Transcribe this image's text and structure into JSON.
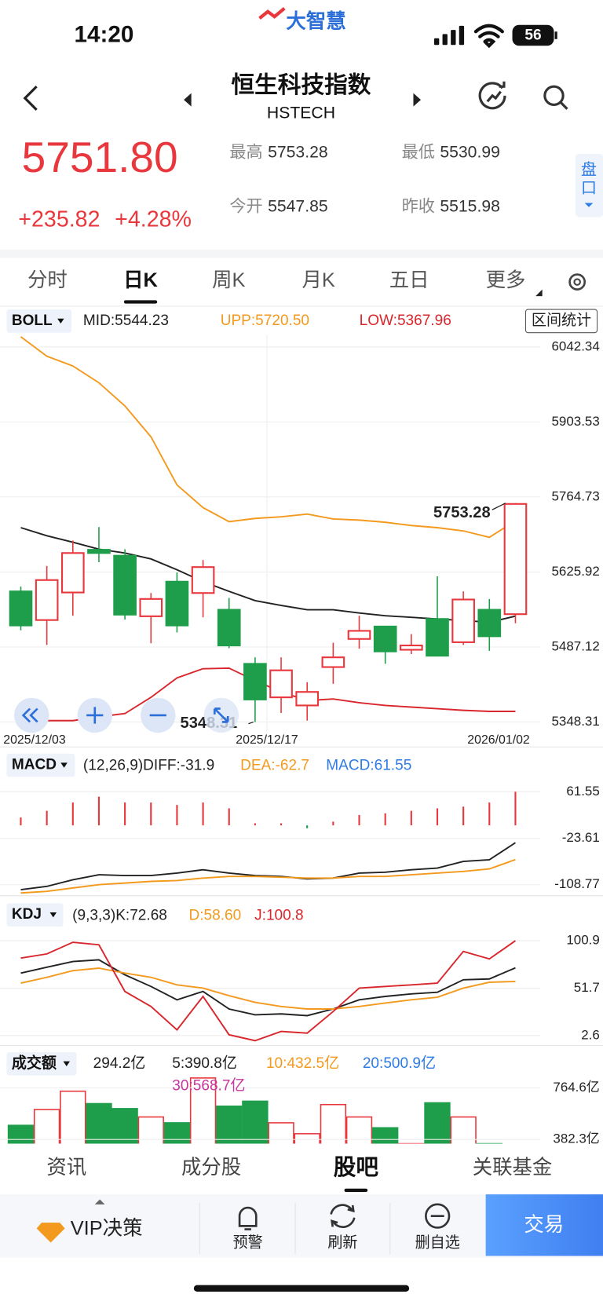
{
  "status_bar": {
    "time": "14:20",
    "app_logo": "大智慧",
    "battery": "56"
  },
  "header": {
    "title": "恒生科技指数",
    "code": "HSTECH"
  },
  "quote": {
    "price": "5751.80",
    "change": "+235.82",
    "change_pct": "+4.28%",
    "stats": [
      {
        "label": "最高",
        "value": "5753.28"
      },
      {
        "label": "最低",
        "value": "5530.99"
      },
      {
        "label": "今开",
        "value": "5547.85"
      },
      {
        "label": "昨收",
        "value": "5515.98"
      }
    ],
    "side_tab": "盘口"
  },
  "tabs": {
    "items": [
      "分时",
      "日K",
      "周K",
      "月K",
      "五日",
      "更多"
    ],
    "active": 1
  },
  "kline": {
    "type": "candlestick",
    "indicator": "BOLL",
    "legend": [
      {
        "text": "MID:5544.23",
        "color": "#222222"
      },
      {
        "text": "UPP:5720.50",
        "color": "#f39a1e"
      },
      {
        "text": "LOW:5367.96",
        "color": "#d9262c"
      }
    ],
    "stats_button": "区间统计",
    "categories": [
      "2025/12/03",
      null,
      null,
      null,
      null,
      null,
      null,
      null,
      null,
      null,
      "2025/12/17",
      null,
      null,
      null,
      null,
      null,
      null,
      null,
      null,
      "2026/01/02"
    ],
    "open": [
      5590,
      5537,
      5588,
      5667,
      5656,
      5544,
      5608,
      5587,
      5556,
      5456,
      5394,
      5379,
      5450,
      5502,
      5525,
      5482,
      5539,
      5496,
      5556,
      5547.85
    ],
    "high": [
      5599,
      5637,
      5684,
      5709,
      5668,
      5587,
      5625,
      5648,
      5578,
      5468,
      5468,
      5422,
      5495,
      5545,
      5525,
      5511,
      5618,
      5590,
      5576,
      5753.28
    ],
    "low": [
      5518,
      5491,
      5545,
      5644,
      5538,
      5494,
      5514,
      5542,
      5485,
      5348.31,
      5365,
      5351,
      5419,
      5484,
      5456,
      5474,
      5471,
      5491,
      5480,
      5530.99
    ],
    "close": [
      5527,
      5611,
      5661,
      5661,
      5547,
      5576,
      5527,
      5635,
      5490,
      5390,
      5444,
      5404,
      5468,
      5517,
      5479,
      5490,
      5471,
      5575,
      5507,
      5751.8
    ],
    "up_color": "#e8383d",
    "down_color": "#1e9e4a",
    "series": [
      {
        "name": "UPP",
        "color": "#f39a1e",
        "values": [
          6061,
          6025,
          6007,
          5976,
          5933,
          5876,
          5787,
          5745,
          5719,
          5725,
          5728,
          5733,
          5724,
          5722,
          5718,
          5712,
          5708,
          5702,
          5690,
          5720.5
        ]
      },
      {
        "name": "MID",
        "color": "#222222",
        "values": [
          5708,
          5693,
          5681,
          5668,
          5661,
          5650,
          5630,
          5608,
          5590,
          5573,
          5564,
          5556,
          5556,
          5550,
          5545,
          5542,
          5539,
          5536,
          5533,
          5544.23
        ]
      },
      {
        "name": "LOW",
        "color": "#d9262c",
        "values": [
          5351,
          5351,
          5351,
          5358,
          5364,
          5394,
          5430,
          5447,
          5448,
          5425,
          5404,
          5388,
          5391,
          5384,
          5379,
          5376,
          5373,
          5370,
          5368,
          5367.96
        ]
      }
    ],
    "ylim": [
      5330,
      6064
    ],
    "yticks": [
      6042.34,
      5903.53,
      5764.73,
      5625.92,
      5487.12,
      5348.31
    ],
    "grid": true,
    "annotations": {
      "high": "5753.28",
      "low": "5348.31"
    }
  },
  "macd": {
    "type": "bar",
    "label": "MACD",
    "legend": [
      {
        "text": "(12,26,9)DIFF:-31.9",
        "color": "#222222"
      },
      {
        "text": "DEA:-62.7",
        "color": "#f39a1e"
      },
      {
        "text": "MACD:61.55",
        "color": "#2d7be5"
      }
    ],
    "values": [
      14.4,
      26.6,
      41.8,
      52.5,
      41.8,
      41.8,
      37.3,
      41.8,
      31.2,
      3.8,
      3.8,
      -5.3,
      6.8,
      19,
      22,
      26.6,
      31.2,
      34.2,
      41.8,
      61.55
    ],
    "series": [
      {
        "name": "DIFF",
        "color": "#222222",
        "values": [
          -117.9,
          -111.8,
          -99.6,
          -90.5,
          -92,
          -92,
          -87.4,
          -81.3,
          -87.4,
          -92,
          -93.5,
          -98.1,
          -96.6,
          -87.4,
          -85.9,
          -81.3,
          -78.3,
          -66.1,
          -63.1,
          -31.9
        ]
      },
      {
        "name": "DEA",
        "color": "#f39a1e",
        "values": [
          -123.9,
          -120.9,
          -114.8,
          -108.7,
          -105.7,
          -102.7,
          -101.1,
          -96.6,
          -93.5,
          -93.5,
          -95.1,
          -96.6,
          -96.6,
          -93.5,
          -93.5,
          -90.5,
          -87.4,
          -84.4,
          -79.8,
          -62.7
        ]
      }
    ],
    "ylim": [
      -126,
      133
    ],
    "yticks": [
      61.55,
      -23.61,
      -108.77
    ]
  },
  "kdj": {
    "type": "line",
    "label": "KDJ",
    "legend": [
      {
        "text": "(9,3,3)K:72.68",
        "color": "#222222"
      },
      {
        "text": "D:58.60",
        "color": "#f39a1e"
      },
      {
        "text": "J:100.8",
        "color": "#d9262c"
      }
    ],
    "series": [
      {
        "name": "K",
        "color": "#222222",
        "values": [
          67.2,
          73.3,
          79.3,
          81,
          65.5,
          53.4,
          39.6,
          48.3,
          30.1,
          24.1,
          25,
          23.2,
          30.1,
          39.6,
          43.1,
          45.7,
          47.4,
          60.3,
          61.2,
          72.68
        ]
      },
      {
        "name": "D",
        "color": "#f39a1e",
        "values": [
          56.9,
          62.9,
          69.8,
          72.4,
          67.2,
          62.9,
          55.1,
          51.7,
          43.9,
          37,
          32.7,
          30.1,
          30.1,
          32.7,
          36.2,
          39.6,
          42.2,
          51.7,
          57.7,
          58.6
        ]
      },
      {
        "name": "J",
        "color": "#d9262c",
        "values": [
          82.8,
          87.1,
          99.2,
          96.6,
          48.2,
          32.7,
          8.5,
          43.1,
          3.4,
          -2.7,
          6.8,
          5.1,
          27.5,
          51.7,
          53.4,
          55.1,
          56.9,
          89.7,
          81.9,
          100.8
        ]
      }
    ],
    "ylim": [
      -6,
      143
    ],
    "yticks": [
      100.9,
      51.7,
      2.6
    ]
  },
  "volume": {
    "type": "bar",
    "label": "成交额",
    "legend": [
      {
        "text": "294.2亿",
        "color": "#222222"
      },
      {
        "text": "5:390.8亿",
        "color": "#222222"
      },
      {
        "text": "10:432.5亿",
        "color": "#f39a1e"
      },
      {
        "text": "20:500.9亿",
        "color": "#2d7be5"
      },
      {
        "text": "30:568.7亿",
        "color": "#c8359d"
      }
    ],
    "values": [
      487,
      604,
      740,
      648,
      611,
      549,
      506,
      838,
      629,
      666,
      506,
      425,
      641,
      549,
      469,
      351,
      654,
      549,
      351,
      294.2
    ],
    "ylim": [
      0,
      1048
    ],
    "yticks": [
      {
        "value": 764.6,
        "label": "764.6亿"
      },
      {
        "value": 382.3,
        "label": "382.3亿"
      }
    ]
  },
  "bottom_tabs": {
    "items": [
      "资讯",
      "成分股",
      "股吧",
      "关联基金"
    ],
    "active": 2
  },
  "toolbar": {
    "vip": "VIP决策",
    "alert": "预警",
    "refresh": "刷新",
    "remove": "删自选",
    "trade": "交易"
  }
}
